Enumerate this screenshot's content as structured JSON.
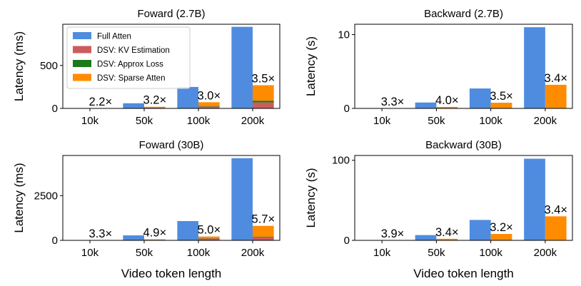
{
  "colors": {
    "full": "#4f8ce0",
    "kv": "#cd5c5c",
    "loss": "#1b7a1b",
    "sparse": "#ff8c00"
  },
  "legend": {
    "full": "Full Atten",
    "kv": "DSV: KV Estimation",
    "loss": "DSV: Approx Loss",
    "sparse": "DSV: Sparse Atten"
  },
  "xlabel": "Video token length",
  "chart_data": [
    {
      "type": "bar",
      "title": "Foward (2.7B)",
      "ylabel": "Latency (ms)",
      "categories": [
        "10k",
        "50k",
        "100k",
        "200k"
      ],
      "ylim": [
        0,
        980
      ],
      "yticks": [
        0,
        500
      ],
      "ytick_labels": [
        "0",
        "500"
      ],
      "full": [
        3,
        60,
        250,
        950
      ],
      "kv": [
        1,
        8,
        22,
        70
      ],
      "loss": [
        0.2,
        2,
        6,
        20
      ],
      "sparse": [
        0.2,
        9,
        44,
        180
      ],
      "speedup_labels": [
        "2.2×",
        "3.2×",
        "3.0×",
        "3.5×"
      ],
      "legend": "upper-left"
    },
    {
      "type": "bar",
      "title": "Backward (2.7B)",
      "ylabel": "Latency (s)",
      "categories": [
        "10k",
        "50k",
        "100k",
        "200k"
      ],
      "ylim": [
        0,
        11.4
      ],
      "yticks": [
        0,
        10
      ],
      "ytick_labels": [
        "0",
        "10"
      ],
      "full": [
        0.05,
        0.8,
        2.7,
        11.0
      ],
      "kv": [
        0,
        0,
        0,
        0
      ],
      "loss": [
        0,
        0,
        0,
        0
      ],
      "sparse": [
        0.02,
        0.2,
        0.77,
        3.2
      ],
      "speedup_labels": [
        "3.3×",
        "4.0×",
        "3.5×",
        "3.4×"
      ]
    },
    {
      "type": "bar",
      "title": "Foward (30B)",
      "ylabel": "Latency (ms)",
      "categories": [
        "10k",
        "50k",
        "100k",
        "200k"
      ],
      "ylim": [
        0,
        4750
      ],
      "yticks": [
        0,
        2500
      ],
      "ytick_labels": [
        "0",
        "2500"
      ],
      "full": [
        15,
        280,
        1080,
        4600
      ],
      "kv": [
        3,
        30,
        100,
        170
      ],
      "loss": [
        1,
        5,
        15,
        30
      ],
      "sparse": [
        1,
        22,
        100,
        610
      ],
      "speedup_labels": [
        "3.3×",
        "4.9×",
        "5.0×",
        "5.7×"
      ]
    },
    {
      "type": "bar",
      "title": "Backward (30B)",
      "ylabel": "Latency (s)",
      "categories": [
        "10k",
        "50k",
        "100k",
        "200k"
      ],
      "ylim": [
        0,
        106
      ],
      "yticks": [
        0,
        100
      ],
      "ytick_labels": [
        "0",
        "100"
      ],
      "full": [
        0.4,
        6.6,
        25.5,
        102
      ],
      "kv": [
        0,
        0,
        0,
        0
      ],
      "loss": [
        0,
        0,
        0,
        0
      ],
      "sparse": [
        0.1,
        1.9,
        8.0,
        30
      ],
      "speedup_labels": [
        "3.9×",
        "3.4×",
        "3.2×",
        "3.4×"
      ]
    }
  ]
}
